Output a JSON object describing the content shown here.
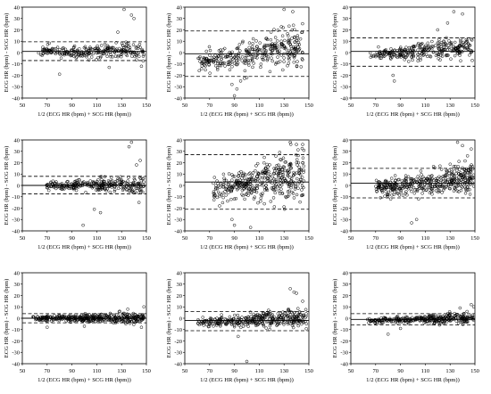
{
  "figure": {
    "panel_count": 9,
    "layout": "3x3 grid of Bland-Altman plots",
    "point_style": "open circles",
    "point_color": "#000000"
  },
  "chart_data": [
    {
      "type": "scatter",
      "id": "p1",
      "xlabel": "1/2 (ECG HR (bpm) + SCG HR (bpm))",
      "ylabel": "ECG HR (bpm) - SCG HR (bpm)",
      "xlim": [
        50,
        150
      ],
      "ylim": [
        -40,
        40
      ],
      "xticks": [
        "50",
        "70",
        "90",
        "110",
        "130",
        "150"
      ],
      "yticks": [
        "40",
        "30",
        "20",
        "10",
        "0",
        "-10",
        "-20",
        "-30",
        "-40"
      ],
      "bias": 1,
      "upper_loa": 9.5,
      "lower_loa": -7,
      "cloud": {
        "x_range": [
          63,
          148
        ],
        "spread": 3.0,
        "trend": 0.0,
        "n": 260,
        "seed": 11,
        "outliers": [
          [
            132,
            38
          ],
          [
            127,
            18
          ],
          [
            140,
            30
          ],
          [
            138,
            33
          ],
          [
            80,
            -19
          ],
          [
            146,
            -12
          ],
          [
            120,
            -13
          ]
        ]
      }
    },
    {
      "type": "scatter",
      "id": "p2",
      "xlabel": "1/2 (ECG HR (bpm) + SCG HR (bpm))",
      "ylabel": "ECG HR (bpm) - SCG HR (bpm)",
      "xlim": [
        50,
        150
      ],
      "ylim": [
        -40,
        40
      ],
      "xticks": [
        "50",
        "70",
        "90",
        "110",
        "130",
        "150"
      ],
      "yticks": [
        "40",
        "30",
        "20",
        "10",
        "0",
        "-10",
        "-20",
        "-30",
        "-40"
      ],
      "bias": -1,
      "upper_loa": 19,
      "lower_loa": -21,
      "cloud": {
        "x_range": [
          60,
          145
        ],
        "spread": 6.0,
        "trend": 0.35,
        "n": 340,
        "seed": 23,
        "outliers": [
          [
            90,
            -38
          ],
          [
            92,
            -32
          ],
          [
            88,
            -28
          ],
          [
            130,
            38
          ],
          [
            137,
            36
          ],
          [
            100,
            -22
          ],
          [
            95,
            -25
          ]
        ]
      }
    },
    {
      "type": "scatter",
      "id": "p3",
      "xlabel": "1/2 (ECG HR (bpm) + SCG HR (bpm))",
      "ylabel": "ECG HR (bpm) - SCG HR (bpm)",
      "xlim": [
        50,
        150
      ],
      "ylim": [
        -40,
        40
      ],
      "xticks": [
        "50",
        "70",
        "90",
        "110",
        "130",
        "150"
      ],
      "yticks": [
        "40",
        "30",
        "20",
        "10",
        "0",
        "-10",
        "-20",
        "-30",
        "-40"
      ],
      "bias": 1,
      "upper_loa": 13,
      "lower_loa": -12,
      "cloud": {
        "x_range": [
          65,
          148
        ],
        "spread": 3.5,
        "trend": 0.18,
        "n": 300,
        "seed": 37,
        "outliers": [
          [
            133,
            36
          ],
          [
            140,
            34
          ],
          [
            85,
            -25
          ],
          [
            84,
            -20
          ],
          [
            128,
            26
          ],
          [
            120,
            20
          ]
        ]
      }
    },
    {
      "type": "scatter",
      "id": "p4",
      "xlabel": "1/2 (ECG HR (bpm) + SCG HR (bpm))",
      "ylabel": "ECG HR (bpm) - SCG HR (bpm)",
      "xlim": [
        50,
        150
      ],
      "ylim": [
        -40,
        40
      ],
      "xticks": [
        "50",
        "70",
        "90",
        "110",
        "130",
        "150"
      ],
      "yticks": [
        "40",
        "30",
        "20",
        "10",
        "0",
        "-10",
        "-20",
        "-30",
        "-40"
      ],
      "bias": 0,
      "upper_loa": 8,
      "lower_loa": -7.5,
      "cloud": {
        "x_range": [
          68,
          148
        ],
        "spread": 2.8,
        "trend": 0.0,
        "n": 280,
        "seed": 41,
        "outliers": [
          [
            138,
            38
          ],
          [
            136,
            34
          ],
          [
            99,
            -35
          ],
          [
            108,
            -21
          ],
          [
            113,
            -24
          ],
          [
            144,
            -15
          ],
          [
            145,
            22
          ],
          [
            142,
            18
          ]
        ]
      }
    },
    {
      "type": "scatter",
      "id": "p5",
      "xlabel": "1/2 (ECG HR (bpm) + SCG HR (bpm))",
      "ylabel": "ECG HR (bpm) - SCG HR (bpm)",
      "xlim": [
        50,
        150
      ],
      "ylim": [
        -40,
        40
      ],
      "xticks": [
        "50",
        "70",
        "90",
        "110",
        "130",
        "150"
      ],
      "yticks": [
        "40",
        "30",
        "20",
        "10",
        "0",
        "-10",
        "-20",
        "-30",
        "-40"
      ],
      "bias": 3,
      "upper_loa": 27,
      "lower_loa": -21,
      "cloud": {
        "x_range": [
          72,
          146
        ],
        "spread": 8.0,
        "trend": 0.38,
        "n": 400,
        "seed": 53,
        "outliers": [
          [
            90,
            -35
          ],
          [
            88,
            -30
          ],
          [
            103,
            -37
          ],
          [
            140,
            36
          ],
          [
            145,
            36
          ],
          [
            135,
            38
          ],
          [
            78,
            -18
          ]
        ]
      }
    },
    {
      "type": "scatter",
      "id": "p6",
      "xlabel": "1/2 (ECG HR (bpm) + SCG HR (bpm))",
      "ylabel": "ECG HR (bpm) - SCG HR (bpm)",
      "xlim": [
        50,
        150
      ],
      "ylim": [
        -40,
        40
      ],
      "xticks": [
        "50",
        "70",
        "90",
        "110",
        "130",
        "150"
      ],
      "yticks": [
        "40",
        "30",
        "20",
        "10",
        "0",
        "-10",
        "-20",
        "-30",
        "-40"
      ],
      "bias": 2,
      "upper_loa": 15,
      "lower_loa": -11,
      "cloud": {
        "x_range": [
          70,
          149
        ],
        "spread": 4.5,
        "trend": 0.25,
        "n": 420,
        "seed": 67,
        "outliers": [
          [
            136,
            38
          ],
          [
            140,
            35
          ],
          [
            99,
            -33
          ],
          [
            103,
            -30
          ],
          [
            147,
            32
          ],
          [
            144,
            26
          ]
        ]
      }
    },
    {
      "type": "scatter",
      "id": "p7",
      "xlabel": "1/2 (ECG HR (bpm) + SCG HR (bpm))",
      "ylabel": "ECG HR (bpm) - SCG HR (bpm)",
      "xlim": [
        50,
        150
      ],
      "ylim": [
        -40,
        40
      ],
      "xticks": [
        "50",
        "70",
        "90",
        "110",
        "130",
        "150"
      ],
      "yticks": [
        "40",
        "30",
        "20",
        "10",
        "0",
        "-10",
        "-20",
        "-30",
        "-40"
      ],
      "bias": 0,
      "upper_loa": 4,
      "lower_loa": -4,
      "cloud": {
        "x_range": [
          58,
          148
        ],
        "spread": 1.6,
        "trend": 0.0,
        "n": 380,
        "seed": 79,
        "outliers": [
          [
            148,
            10
          ],
          [
            146,
            -8
          ],
          [
            70,
            -8
          ],
          [
            135,
            8
          ],
          [
            100,
            -7
          ]
        ]
      }
    },
    {
      "type": "scatter",
      "id": "p8",
      "xlabel": "1/2 (ECG HR (bpm) + SCG HR (bpm))",
      "ylabel": "ECG HR (bpm) - SCG HR (bpm)",
      "xlim": [
        50,
        150
      ],
      "ylim": [
        -40,
        40
      ],
      "xticks": [
        "50",
        "70",
        "90",
        "110",
        "130",
        "150"
      ],
      "yticks": [
        "40",
        "30",
        "20",
        "10",
        "0",
        "-10",
        "-20",
        "-30",
        "-40"
      ],
      "bias": -2,
      "upper_loa": 6,
      "lower_loa": -11,
      "cloud": {
        "x_range": [
          60,
          148
        ],
        "spread": 3.0,
        "trend": 0.08,
        "n": 360,
        "seed": 91,
        "outliers": [
          [
            100,
            -38
          ],
          [
            135,
            26
          ],
          [
            138,
            23
          ],
          [
            140,
            22
          ],
          [
            145,
            15
          ],
          [
            93,
            -16
          ]
        ]
      }
    },
    {
      "type": "scatter",
      "id": "p9",
      "xlabel": "1/2 (ECG HR (bpm) + SCG HR (bpm))",
      "ylabel": "ECG HR (bpm) - SCG HR (bpm)",
      "xlim": [
        50,
        150
      ],
      "ylim": [
        -40,
        40
      ],
      "xticks": [
        "50",
        "70",
        "90",
        "110",
        "130",
        "150"
      ],
      "yticks": [
        "40",
        "30",
        "20",
        "10",
        "0",
        "-10",
        "-20",
        "-30",
        "-40"
      ],
      "bias": -1,
      "upper_loa": 4,
      "lower_loa": -6,
      "cloud": {
        "x_range": [
          63,
          149
        ],
        "spread": 1.8,
        "trend": 0.05,
        "n": 330,
        "seed": 103,
        "outliers": [
          [
            80,
            -14
          ],
          [
            149,
            10
          ],
          [
            147,
            12
          ],
          [
            138,
            9
          ],
          [
            90,
            -9
          ]
        ]
      }
    }
  ]
}
